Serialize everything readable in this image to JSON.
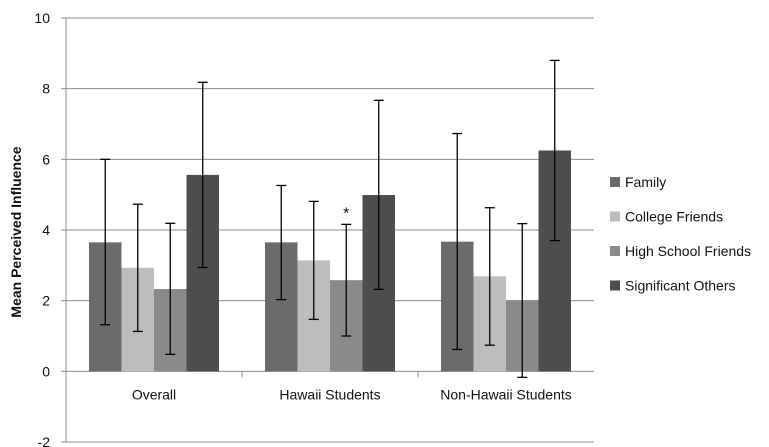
{
  "chart_data": {
    "type": "bar",
    "title": "",
    "xlabel": "",
    "ylabel": "Mean Perceived Influence",
    "ylim": [
      -2,
      10
    ],
    "yticks": [
      -2,
      0,
      2,
      4,
      6,
      8,
      10
    ],
    "grid": true,
    "legend_position": "right",
    "categories": [
      "Overall",
      "Hawaii Students",
      "Non-Hawaii Students"
    ],
    "series": [
      {
        "name": "Family",
        "color": "#6b6b6b",
        "values": [
          3.65,
          3.65,
          3.67
        ],
        "error_low": [
          1.32,
          2.03,
          0.62
        ],
        "error_high": [
          6.0,
          5.26,
          6.73
        ]
      },
      {
        "name": "College Friends",
        "color": "#bdbdbd",
        "values": [
          2.93,
          3.14,
          2.69
        ],
        "error_low": [
          1.13,
          1.47,
          0.74
        ],
        "error_high": [
          4.73,
          4.81,
          4.63
        ]
      },
      {
        "name": "High School Friends",
        "color": "#8a8a8a",
        "values": [
          2.33,
          2.58,
          2.01
        ],
        "error_low": [
          0.48,
          1.0,
          -0.17
        ],
        "error_high": [
          4.19,
          4.16,
          4.18
        ]
      },
      {
        "name": "Significant Others",
        "color": "#4d4d4d",
        "values": [
          5.56,
          4.99,
          6.25
        ],
        "error_low": [
          2.94,
          2.32,
          3.7
        ],
        "error_high": [
          8.18,
          7.67,
          8.8
        ]
      }
    ],
    "annotations": [
      {
        "text": "*",
        "category": "Hawaii Students",
        "series": "High School Friends"
      }
    ]
  }
}
